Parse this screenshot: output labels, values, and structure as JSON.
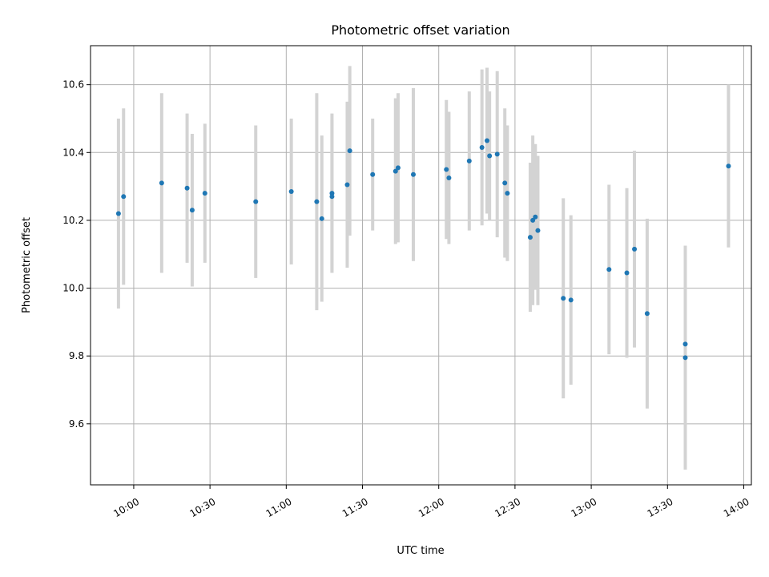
{
  "chart_data": {
    "type": "scatter",
    "title": "Photometric offset variation",
    "xlabel": "UTC time",
    "ylabel": "Photometric offset",
    "x_is_time": true,
    "xlim": [
      "09:43",
      "14:03"
    ],
    "ylim": [
      9.42,
      10.715
    ],
    "x_ticks": [
      "10:00",
      "10:30",
      "11:00",
      "11:30",
      "12:00",
      "12:30",
      "13:00",
      "13:30",
      "14:00"
    ],
    "y_ticks": [
      9.6,
      9.8,
      10.0,
      10.2,
      10.4,
      10.6
    ],
    "y_tick_labels": [
      "9.6",
      "9.8",
      "10.0",
      "10.2",
      "10.4",
      "10.6"
    ],
    "grid": true,
    "colors": {
      "point": "#1f77b4",
      "errorbar": "#d3d3d3",
      "grid": "#b0b0b0"
    },
    "points": [
      {
        "x": "09:54",
        "y": 10.22,
        "err": 0.28
      },
      {
        "x": "09:56",
        "y": 10.27,
        "err": 0.26
      },
      {
        "x": "10:11",
        "y": 10.31,
        "err": 0.265
      },
      {
        "x": "10:21",
        "y": 10.295,
        "err": 0.22
      },
      {
        "x": "10:23",
        "y": 10.23,
        "err": 0.225
      },
      {
        "x": "10:28",
        "y": 10.28,
        "err": 0.205
      },
      {
        "x": "10:48",
        "y": 10.255,
        "err": 0.225
      },
      {
        "x": "11:02",
        "y": 10.285,
        "err": 0.215
      },
      {
        "x": "11:12",
        "y": 10.255,
        "err": 0.32
      },
      {
        "x": "11:14",
        "y": 10.205,
        "err": 0.245
      },
      {
        "x": "11:18",
        "y": 10.28,
        "err": 0.235
      },
      {
        "x": "11:18",
        "y": 10.27,
        "err": 0.225
      },
      {
        "x": "11:24",
        "y": 10.305,
        "err": 0.245
      },
      {
        "x": "11:25",
        "y": 10.405,
        "err": 0.25
      },
      {
        "x": "11:34",
        "y": 10.335,
        "err": 0.165
      },
      {
        "x": "11:43",
        "y": 10.345,
        "err": 0.215
      },
      {
        "x": "11:44",
        "y": 10.355,
        "err": 0.22
      },
      {
        "x": "11:50",
        "y": 10.335,
        "err": 0.255
      },
      {
        "x": "12:03",
        "y": 10.35,
        "err": 0.205
      },
      {
        "x": "12:04",
        "y": 10.325,
        "err": 0.195
      },
      {
        "x": "12:12",
        "y": 10.375,
        "err": 0.205
      },
      {
        "x": "12:17",
        "y": 10.415,
        "err": 0.23
      },
      {
        "x": "12:19",
        "y": 10.435,
        "err": 0.215
      },
      {
        "x": "12:20",
        "y": 10.39,
        "err": 0.19
      },
      {
        "x": "12:23",
        "y": 10.395,
        "err": 0.245
      },
      {
        "x": "12:26",
        "y": 10.31,
        "err": 0.22
      },
      {
        "x": "12:27",
        "y": 10.28,
        "err": 0.2
      },
      {
        "x": "12:36",
        "y": 10.15,
        "err": 0.22
      },
      {
        "x": "12:37",
        "y": 10.2,
        "err": 0.25
      },
      {
        "x": "12:38",
        "y": 10.21,
        "err": 0.215
      },
      {
        "x": "12:39",
        "y": 10.17,
        "err": 0.22
      },
      {
        "x": "12:49",
        "y": 9.97,
        "err": 0.295
      },
      {
        "x": "12:52",
        "y": 9.965,
        "err": 0.25
      },
      {
        "x": "13:07",
        "y": 10.055,
        "err": 0.25
      },
      {
        "x": "13:14",
        "y": 10.045,
        "err": 0.25
      },
      {
        "x": "13:17",
        "y": 10.115,
        "err": 0.29
      },
      {
        "x": "13:22",
        "y": 9.925,
        "err": 0.28
      },
      {
        "x": "13:37",
        "y": 9.835,
        "err": 0.29
      },
      {
        "x": "13:37",
        "y": 9.795,
        "err": 0.33
      },
      {
        "x": "13:54",
        "y": 10.36,
        "err": 0.24
      }
    ]
  }
}
